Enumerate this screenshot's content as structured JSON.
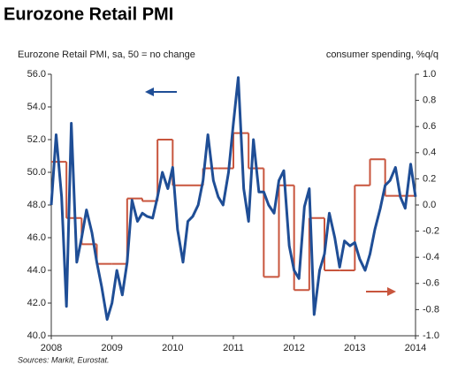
{
  "chart_data": {
    "type": "line",
    "title": "Eurozone Retail PMI",
    "y_label": "Eurozone Retail PMI, sa, 50 = no change",
    "y2_label": "consumer spending, %q/q",
    "source": "Sources: Markit, Eurostat.",
    "xlim": [
      2008,
      2014
    ],
    "xticks": [
      2008,
      2009,
      2010,
      2011,
      2012,
      2013,
      2014
    ],
    "ylim": [
      40,
      56
    ],
    "yticks": [
      {
        "value": 40,
        "label": "40.0"
      },
      {
        "value": 42,
        "label": "42.0"
      },
      {
        "value": 44,
        "label": "44.0"
      },
      {
        "value": 46,
        "label": "46.0"
      },
      {
        "value": 48,
        "label": "48.0"
      },
      {
        "value": 50,
        "label": "50.0"
      },
      {
        "value": 52,
        "label": "52.0"
      },
      {
        "value": 54,
        "label": "54.0"
      },
      {
        "value": 56,
        "label": "56.0"
      }
    ],
    "y2lim": [
      -1,
      1
    ],
    "y2ticks": [
      {
        "value": -1,
        "label": "-1.0"
      },
      {
        "value": -0.8,
        "label": "-0.8"
      },
      {
        "value": -0.6,
        "label": "-0.6"
      },
      {
        "value": -0.4,
        "label": "-0.4"
      },
      {
        "value": -0.2,
        "label": "-0.2"
      },
      {
        "value": 0,
        "label": "0.0"
      },
      {
        "value": 0.2,
        "label": "0.2"
      },
      {
        "value": 0.4,
        "label": "0.4"
      },
      {
        "value": 0.6,
        "label": "0.6"
      },
      {
        "value": 0.8,
        "label": "0.8"
      },
      {
        "value": 1,
        "label": "1.0"
      }
    ],
    "series": [
      {
        "color": "#1f4e96",
        "axis": "y",
        "x": [
          2008,
          2008.08,
          2008.17,
          2008.25,
          2008.33,
          2008.42,
          2008.5,
          2008.58,
          2008.67,
          2008.75,
          2008.83,
          2008.92,
          2009,
          2009.08,
          2009.17,
          2009.25,
          2009.33,
          2009.42,
          2009.5,
          2009.58,
          2009.67,
          2009.75,
          2009.83,
          2009.92,
          2010,
          2010.08,
          2010.17,
          2010.25,
          2010.33,
          2010.42,
          2010.5,
          2010.58,
          2010.67,
          2010.75,
          2010.83,
          2010.92,
          2011,
          2011.08,
          2011.17,
          2011.25,
          2011.33,
          2011.42,
          2011.5,
          2011.58,
          2011.67,
          2011.75,
          2011.83,
          2011.92,
          2012,
          2012.08,
          2012.17,
          2012.25,
          2012.33,
          2012.42,
          2012.5,
          2012.58,
          2012.67,
          2012.75,
          2012.83,
          2012.92,
          2013,
          2013.08,
          2013.17,
          2013.25,
          2013.33,
          2013.42,
          2013.5,
          2013.58,
          2013.67,
          2013.75,
          2013.83,
          2013.92,
          2014
        ],
        "values": [
          48.0,
          52.3,
          48.5,
          41.8,
          53.0,
          44.5,
          46.0,
          47.7,
          46.3,
          44.5,
          43.0,
          41.0,
          42.0,
          44.0,
          42.5,
          44.5,
          48.3,
          47.0,
          47.5,
          47.3,
          47.2,
          48.5,
          50.0,
          49.0,
          50.3,
          46.5,
          44.5,
          47.0,
          47.3,
          48.0,
          49.5,
          52.3,
          49.5,
          48.5,
          48.0,
          50.0,
          53.0,
          55.8,
          49.0,
          47.0,
          52.0,
          48.8,
          48.8,
          48.0,
          47.5,
          49.5,
          50.1,
          45.5,
          44.0,
          43.5,
          47.9,
          49.0,
          41.3,
          44.0,
          45.0,
          47.5,
          46.0,
          44.2,
          45.8,
          45.5,
          45.7,
          44.7,
          44.0,
          45.0,
          46.5,
          47.8,
          49.2,
          49.5,
          50.3,
          48.5,
          47.8,
          50.5,
          48.5
        ]
      },
      {
        "color": "#c8553d",
        "axis": "y2",
        "x": [
          2008,
          2008.25,
          2008.5,
          2008.75,
          2009,
          2009.25,
          2009.5,
          2009.75,
          2010,
          2010.25,
          2010.5,
          2010.75,
          2011,
          2011.25,
          2011.5,
          2011.75,
          2012,
          2012.25,
          2012.5,
          2012.75,
          2013,
          2013.25,
          2013.5,
          2013.75
        ],
        "values": [
          0.33,
          -0.1,
          -0.3,
          -0.45,
          -0.45,
          0.05,
          0.03,
          0.5,
          0.15,
          0.15,
          0.28,
          0.28,
          0.55,
          0.28,
          -0.55,
          0.15,
          -0.65,
          -0.1,
          -0.5,
          -0.5,
          0.15,
          0.35,
          0.07,
          0.07
        ]
      }
    ]
  }
}
